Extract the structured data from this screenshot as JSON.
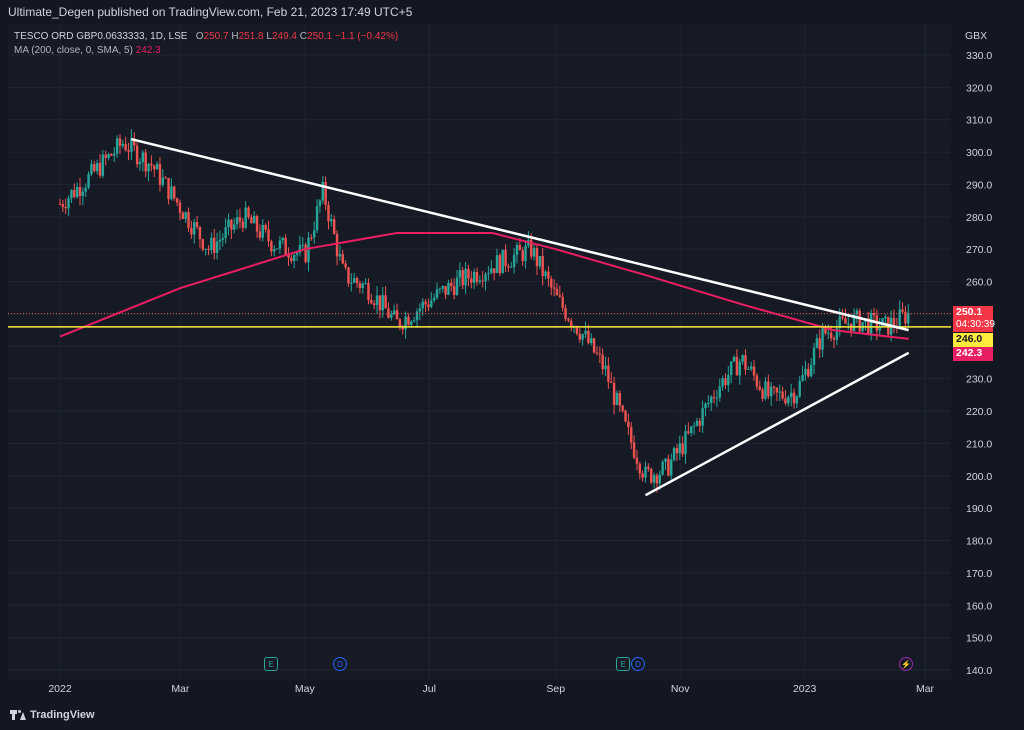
{
  "header": {
    "published": "Ultimate_Degen published on TradingView.com, Feb 21, 2023 17:49 UTC+5"
  },
  "legend": {
    "symbol": "TESCO ORD GBP0.0633333, 1D, LSE",
    "o_label": "O",
    "o_value": "250.7",
    "h_label": "H",
    "h_value": "251.8",
    "l_label": "L",
    "l_value": "249.4",
    "c_label": "C",
    "c_value": "250.1",
    "change": "−1.1 (−0.42%)",
    "ma_label": "MA (200, close, 0, SMA, 5)",
    "ma_value": "242.3"
  },
  "currency": "GBX",
  "price_tags": {
    "last": "250.1",
    "countdown": "04:30:39",
    "support": "246.0",
    "ma": "242.3"
  },
  "footer": {
    "brand": "TradingView"
  },
  "colors": {
    "background": "#161a25",
    "up": "#26a69a",
    "down": "#ef5350",
    "ma": "#e91e63",
    "support_line": "#ffeb3b",
    "trendline": "#ffffff"
  },
  "icons": [
    "earnings-icon",
    "dividend-icon",
    "news-icon",
    "tradingview-logo-icon"
  ],
  "chart_data": {
    "type": "candlestick",
    "title": "TESCO ORD GBP0.0633333, 1D, LSE",
    "ylabel": "GBX",
    "ylim": [
      140,
      330
    ],
    "y_ticks": [
      "330.0",
      "320.0",
      "310.0",
      "300.0",
      "290.0",
      "280.0",
      "270.0",
      "260.0",
      "250.0",
      "240.0",
      "230.0",
      "220.0",
      "210.0",
      "200.0",
      "190.0",
      "180.0",
      "170.0",
      "160.0",
      "150.0",
      "140.0"
    ],
    "x_ticks": [
      "2022",
      "Mar",
      "May",
      "Jul",
      "Sep",
      "Nov",
      "2023",
      "Mar"
    ],
    "series_close_approx": [
      {
        "x": "2022-01-01",
        "close": 284
      },
      {
        "x": "2022-01-15",
        "close": 292
      },
      {
        "x": "2022-02-01",
        "close": 303
      },
      {
        "x": "2022-02-15",
        "close": 296
      },
      {
        "x": "2022-03-01",
        "close": 283
      },
      {
        "x": "2022-03-15",
        "close": 270
      },
      {
        "x": "2022-04-01",
        "close": 280
      },
      {
        "x": "2022-04-15",
        "close": 272
      },
      {
        "x": "2022-05-01",
        "close": 268
      },
      {
        "x": "2022-05-10",
        "close": 288
      },
      {
        "x": "2022-05-20",
        "close": 262
      },
      {
        "x": "2022-06-01",
        "close": 258
      },
      {
        "x": "2022-06-15",
        "close": 247
      },
      {
        "x": "2022-07-01",
        "close": 254
      },
      {
        "x": "2022-07-15",
        "close": 260
      },
      {
        "x": "2022-08-01",
        "close": 265
      },
      {
        "x": "2022-08-20",
        "close": 270
      },
      {
        "x": "2022-09-01",
        "close": 255
      },
      {
        "x": "2022-09-15",
        "close": 243
      },
      {
        "x": "2022-09-25",
        "close": 233
      },
      {
        "x": "2022-10-05",
        "close": 215
      },
      {
        "x": "2022-10-15",
        "close": 200
      },
      {
        "x": "2022-10-25",
        "close": 202
      },
      {
        "x": "2022-11-05",
        "close": 212
      },
      {
        "x": "2022-11-20",
        "close": 228
      },
      {
        "x": "2022-12-01",
        "close": 236
      },
      {
        "x": "2022-12-15",
        "close": 224
      },
      {
        "x": "2022-12-28",
        "close": 226
      },
      {
        "x": "2023-01-10",
        "close": 244
      },
      {
        "x": "2023-01-25",
        "close": 248
      },
      {
        "x": "2023-02-10",
        "close": 246
      },
      {
        "x": "2023-02-21",
        "close": 250.1
      }
    ],
    "ma200_approx": [
      {
        "x": "2022-01-01",
        "value": 243
      },
      {
        "x": "2022-03-01",
        "value": 258
      },
      {
        "x": "2022-05-01",
        "value": 270
      },
      {
        "x": "2022-06-15",
        "value": 275
      },
      {
        "x": "2022-08-01",
        "value": 275
      },
      {
        "x": "2022-09-01",
        "value": 270
      },
      {
        "x": "2022-10-15",
        "value": 262
      },
      {
        "x": "2022-12-01",
        "value": 253
      },
      {
        "x": "2023-01-15",
        "value": 245
      },
      {
        "x": "2023-02-21",
        "value": 242.3
      }
    ],
    "horizontal_lines": [
      {
        "name": "support",
        "value": 246.0
      }
    ],
    "trendlines": [
      {
        "name": "downtrend",
        "from": {
          "x": "2022-02-05",
          "y": 304
        },
        "to": {
          "x": "2023-02-21",
          "y": 245
        }
      },
      {
        "name": "uptrend",
        "from": {
          "x": "2022-10-15",
          "y": 194
        },
        "to": {
          "x": "2023-02-21",
          "y": 238
        }
      }
    ],
    "grid": true
  }
}
